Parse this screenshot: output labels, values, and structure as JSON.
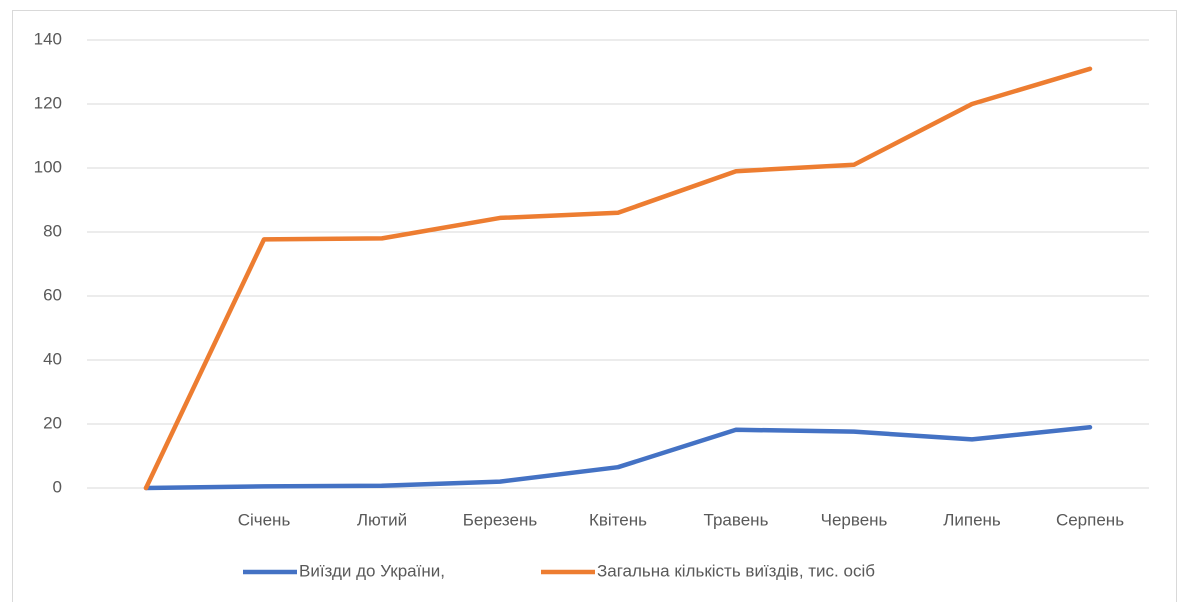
{
  "chart_data": {
    "type": "line",
    "categories": [
      null,
      "Січень",
      "Лютий",
      "Березень",
      "Квітень",
      "Травень",
      "Червень",
      "Липень",
      "Серпень"
    ],
    "series": [
      {
        "name": "Виїзди до України,",
        "color": "#4472c4",
        "values": [
          0,
          0.5,
          0.7,
          2,
          6.5,
          18.2,
          17.6,
          15.2,
          19
        ]
      },
      {
        "name": "Загальна кількість виїздів, тис. осіб",
        "color": "#ed7d31",
        "values": [
          0,
          77.7,
          78,
          84.4,
          86,
          99,
          101,
          120,
          131
        ]
      }
    ],
    "ylim": [
      0,
      140
    ],
    "yticks": [
      0,
      20,
      40,
      60,
      80,
      100,
      120,
      140
    ],
    "grid": true,
    "legend": "bottom"
  }
}
